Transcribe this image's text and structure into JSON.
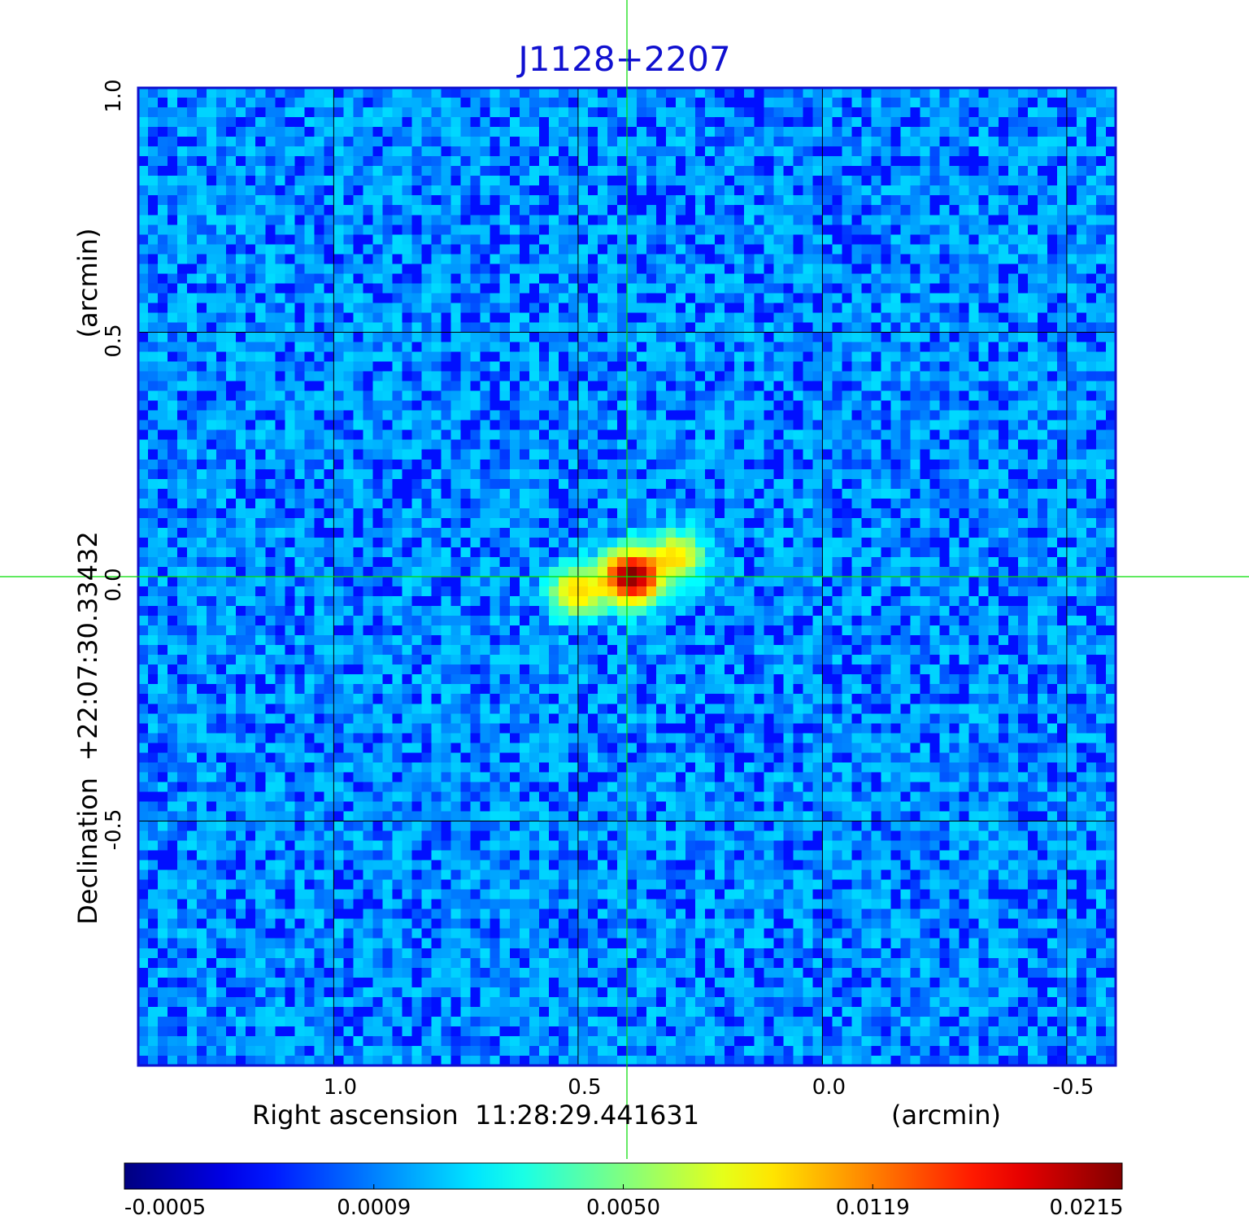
{
  "chart_data": {
    "type": "heatmap",
    "title": "J1128+2207",
    "xlabel": "Right ascension  11:28:29.441631",
    "xunit": "(arcmin)",
    "ylabel": "Declination  +22:07:30.33432",
    "yunit": "(arcmin)",
    "xlim": [
      1.4,
      -0.6
    ],
    "ylim": [
      -1.0,
      1.0
    ],
    "x_ticks": [
      "1.0",
      "0.5",
      "0.0",
      "-0.5"
    ],
    "y_ticks": [
      "1.0",
      "0.5",
      "0.0",
      "-0.5"
    ],
    "grid": true,
    "crosshair": {
      "x": 0.4,
      "y": 0.0
    },
    "colorbar": {
      "colormap": "jet",
      "ticks": [
        "-0.0005",
        "0.0009",
        "0.0050",
        "0.0119",
        "0.0215"
      ],
      "min": -0.0005,
      "max": 0.0215
    },
    "sources": [
      {
        "x": 0.39,
        "y": 0.0,
        "peak": 0.0215
      },
      {
        "x": 0.5,
        "y": -0.03,
        "peak": 0.008
      },
      {
        "x": 0.3,
        "y": 0.04,
        "peak": 0.007
      }
    ],
    "noise_level": 0.0007
  },
  "colors": {
    "title": "#1010d0",
    "grid": "#000000",
    "crosshair": "#00dd00",
    "frame": "#1010d0"
  }
}
